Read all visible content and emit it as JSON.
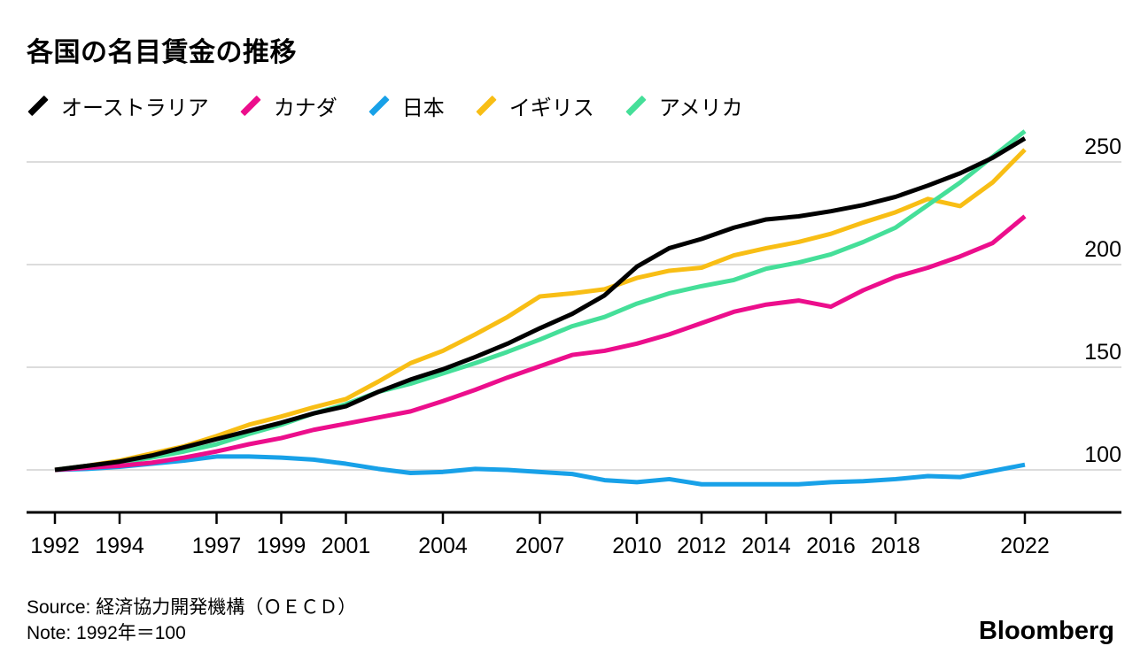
{
  "title": "各国の名目賃金の推移",
  "source": "Source: 経済協力開発機構（ＯＥＣＤ）",
  "note": "Note: 1992年＝100",
  "brand": "Bloomberg",
  "colors": {
    "grid": "#dcdcdc",
    "axis": "#000000",
    "text": "#000000"
  },
  "chart_data": {
    "type": "line",
    "title": "各国の名目賃金の推移",
    "note": "1992年＝100",
    "grid": "horizontal",
    "legend_position": "top",
    "x": [
      1992,
      1993,
      1994,
      1995,
      1996,
      1997,
      1998,
      1999,
      2000,
      2001,
      2002,
      2003,
      2004,
      2005,
      2006,
      2007,
      2008,
      2009,
      2010,
      2011,
      2012,
      2013,
      2014,
      2015,
      2016,
      2017,
      2018,
      2019,
      2020,
      2021,
      2022
    ],
    "xticks": [
      1992,
      1994,
      1997,
      1999,
      2001,
      2004,
      2007,
      2010,
      2012,
      2014,
      2016,
      2018,
      2022
    ],
    "yticks": [
      100,
      150,
      200,
      250
    ],
    "ylim": [
      85,
      270
    ],
    "series": [
      {
        "key": "australia",
        "name": "オーストラリア",
        "color": "#000000",
        "values": [
          100,
          102,
          104,
          107,
          111,
          115,
          119,
          123,
          127.5,
          131,
          138,
          144,
          149,
          155,
          161.5,
          169,
          176,
          185,
          199,
          208,
          212.5,
          218,
          222,
          223.5,
          226,
          229,
          233,
          238.5,
          244.5,
          252,
          261.5
        ]
      },
      {
        "key": "canada",
        "name": "カナダ",
        "color": "#ec0e8c",
        "values": [
          100,
          101,
          102,
          103.5,
          106,
          109,
          112.5,
          115.5,
          119.5,
          122.5,
          125.5,
          128.5,
          133.5,
          139,
          145,
          150.5,
          156,
          158,
          161.5,
          166,
          171.5,
          177,
          180.5,
          182.5,
          179.5,
          187.5,
          194,
          198.5,
          204,
          210.5,
          223.5
        ]
      },
      {
        "key": "japan",
        "name": "日本",
        "color": "#18a1e8",
        "values": [
          100,
          100.5,
          101.5,
          103,
          104.5,
          106.5,
          106.5,
          106,
          105,
          103,
          100.5,
          98.5,
          99,
          100.5,
          100,
          99,
          98,
          95,
          94,
          95.5,
          93,
          93,
          93,
          93,
          94,
          94.5,
          95.5,
          97,
          96.5,
          99.5,
          102.5
        ]
      },
      {
        "key": "uk",
        "name": "イギリス",
        "color": "#f8be15",
        "values": [
          100,
          102,
          104.5,
          108,
          111.5,
          116.5,
          122,
          126,
          130.5,
          134.5,
          143,
          152,
          158,
          166,
          174.5,
          184.5,
          186,
          188,
          193.5,
          197,
          198.5,
          204.5,
          208,
          211,
          215,
          220.5,
          225.5,
          232,
          228.5,
          240,
          256
        ]
      },
      {
        "key": "us",
        "name": "アメリカ",
        "color": "#45df99",
        "values": [
          100,
          102,
          103.5,
          106,
          109,
          112.5,
          117.5,
          122,
          127.5,
          132,
          138,
          142,
          147,
          152,
          157.5,
          163.5,
          170,
          174.5,
          181,
          186,
          189.5,
          192.5,
          198,
          201,
          205,
          211,
          218,
          229,
          240,
          252.5,
          265
        ]
      }
    ]
  }
}
